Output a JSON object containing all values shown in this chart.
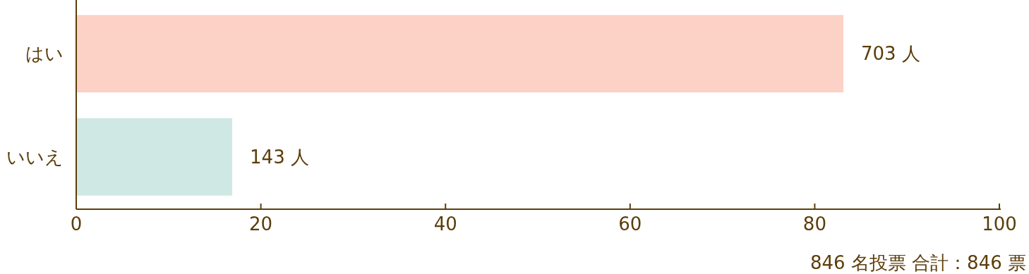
{
  "chart_data": {
    "type": "bar",
    "orientation": "horizontal",
    "categories": [
      "はい",
      "いいえ"
    ],
    "values": [
      83.1,
      16.9
    ],
    "colors": [
      "#fcd1c6",
      "#cfe8e4"
    ],
    "xlim": [
      0,
      100
    ],
    "xticks": [
      0,
      20,
      40,
      60,
      80,
      100
    ],
    "annotations": [
      {
        "text": "703 人",
        "x": 83.1,
        "y": "はい"
      },
      {
        "text": "143 人",
        "x": 16.9,
        "y": "いいえ"
      },
      "846 名投票 合計：846 票"
    ]
  }
}
